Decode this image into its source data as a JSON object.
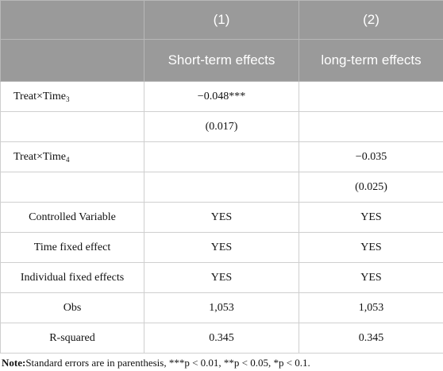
{
  "table": {
    "header_row1": [
      "",
      "(1)",
      "(2)"
    ],
    "header_row2": [
      "",
      "Short-term effects",
      "long-term effects"
    ],
    "rows": [
      {
        "label": "Treat×Time",
        "label_sub": "3",
        "c1": "−0.048***",
        "c2": ""
      },
      {
        "label": "",
        "label_sub": "",
        "c1": "(0.017)",
        "c2": ""
      },
      {
        "label": "Treat×Time",
        "label_sub": "4",
        "c1": "",
        "c2": "−0.035"
      },
      {
        "label": "",
        "label_sub": "",
        "c1": "",
        "c2": "(0.025)"
      },
      {
        "label": "Controlled Variable",
        "label_sub": "",
        "c1": "YES",
        "c2": "YES"
      },
      {
        "label": "Time fixed effect",
        "label_sub": "",
        "c1": "YES",
        "c2": "YES"
      },
      {
        "label": "Individual fixed effects",
        "label_sub": "",
        "c1": "YES",
        "c2": "YES"
      },
      {
        "label": "Obs",
        "label_sub": "",
        "c1": "1,053",
        "c2": "1,053"
      },
      {
        "label": "R-squared",
        "label_sub": "",
        "c1": "0.345",
        "c2": "0.345"
      }
    ]
  },
  "note": {
    "prefix": "Note:",
    "text": "Standard errors are in parenthesis, ***p < 0.01, **p < 0.05, *p < 0.1."
  }
}
